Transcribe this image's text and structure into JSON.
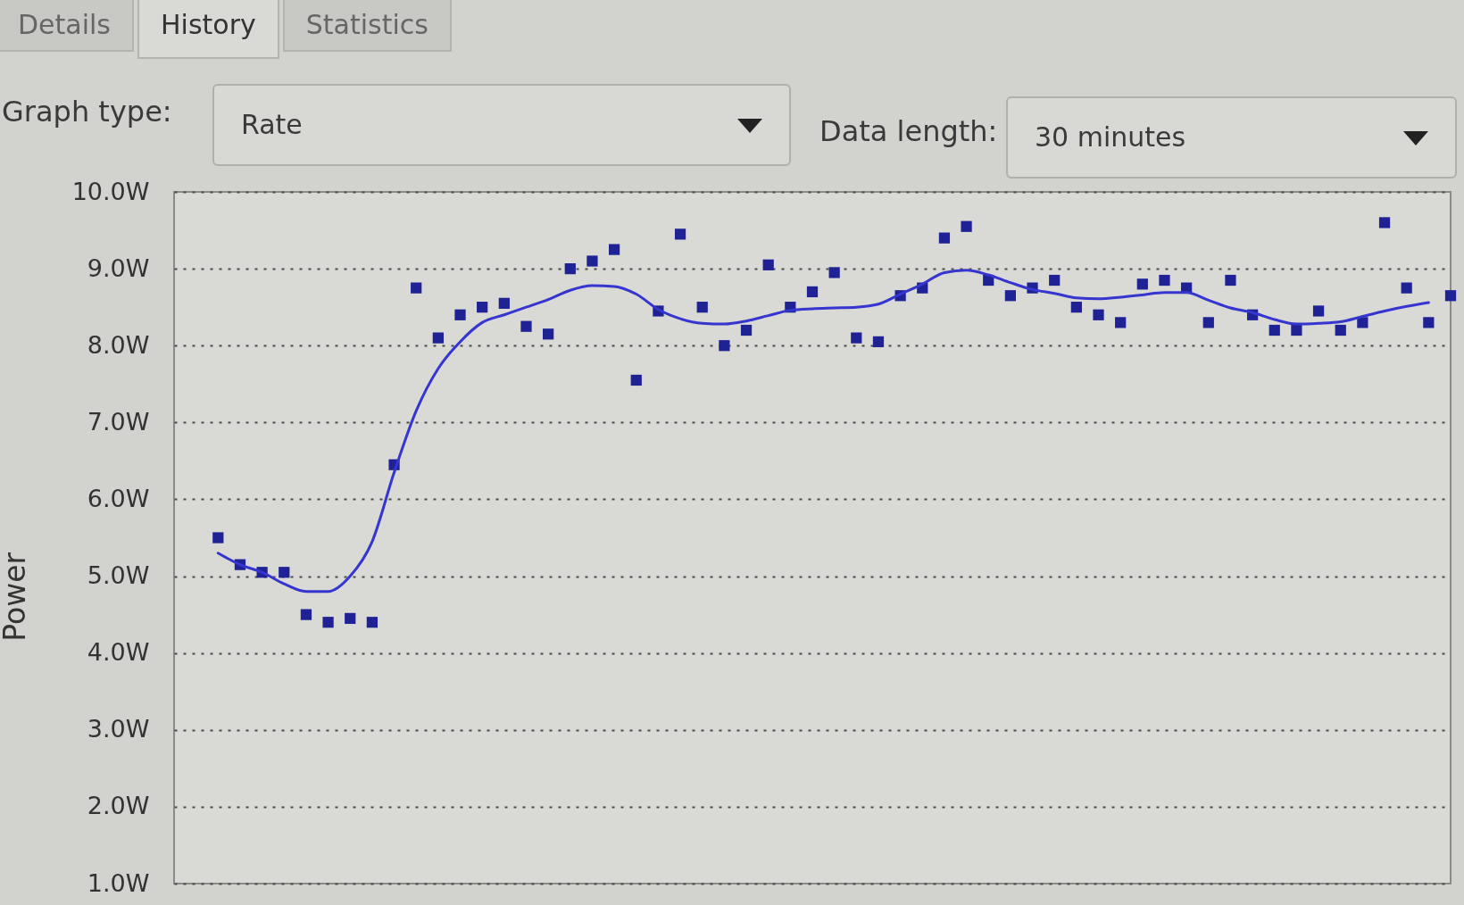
{
  "chart_data": {
    "type": "scatter",
    "ylabel": "Power",
    "annotations": [
      "Details",
      "History",
      "Statistics",
      "Graph type:",
      "Rate",
      "Data length:",
      "30 minutes"
    ],
    "categories": [
      null,
      null,
      null,
      null,
      null,
      null,
      null,
      null,
      null,
      null,
      null,
      null,
      null,
      null,
      null,
      null,
      null,
      null,
      null,
      null,
      null,
      null,
      null,
      null,
      null,
      null,
      null,
      null,
      null,
      null,
      null,
      null,
      null,
      null,
      null,
      null,
      null,
      null,
      null,
      null,
      null,
      null,
      null,
      null,
      null,
      null,
      null,
      null,
      null,
      null,
      null,
      null,
      null,
      null,
      null,
      null,
      null
    ],
    "series": [
      {
        "color": "#1f2294",
        "values": [
          5.5,
          5.15,
          5.05,
          5.05,
          4.5,
          4.4,
          4.45,
          4.4,
          6.45,
          8.75,
          8.1,
          8.4,
          8.5,
          8.55,
          8.25,
          8.15,
          9.0,
          9.1,
          9.25,
          7.55,
          8.45,
          9.45,
          8.5,
          8.0,
          8.2,
          9.05,
          8.5,
          8.7,
          8.95,
          8.1,
          8.05,
          8.65,
          8.75,
          9.4,
          9.55,
          8.85,
          8.65,
          8.75,
          8.85,
          8.5,
          8.4,
          8.3,
          8.8,
          8.85,
          8.75,
          8.3,
          8.85,
          8.4,
          8.2,
          8.2,
          8.45,
          8.2,
          8.3,
          9.6,
          8.75,
          8.3,
          8.65
        ]
      },
      {
        "type": "line",
        "color": "#3535d0",
        "marker": "none",
        "values": [
          5.3,
          5.15,
          5.05,
          4.9,
          4.8,
          4.8,
          5.0,
          5.45,
          6.35,
          7.15,
          7.7,
          8.05,
          8.3,
          8.4,
          8.5,
          8.6,
          8.72,
          8.78,
          8.77,
          8.67,
          8.47,
          8.35,
          8.29,
          8.28,
          8.32,
          8.39,
          8.46,
          8.48,
          8.49,
          8.5,
          8.54,
          8.67,
          8.8,
          8.95,
          8.98,
          8.92,
          8.82,
          8.73,
          8.68,
          8.62,
          8.61,
          8.63,
          8.66,
          8.69,
          8.69,
          8.59,
          8.49,
          8.43,
          8.34,
          8.28,
          8.29,
          8.31,
          8.38,
          8.45,
          8.51,
          8.56,
          null
        ]
      }
    ],
    "ylim": [
      1,
      10
    ],
    "yticks": [
      {
        "value": 1,
        "label": "1.0W"
      },
      {
        "value": 2,
        "label": "2.0W"
      },
      {
        "value": 3,
        "label": "3.0W"
      },
      {
        "value": 4,
        "label": "4.0W"
      },
      {
        "value": 5,
        "label": "5.0W"
      },
      {
        "value": 6,
        "label": "6.0W"
      },
      {
        "value": 7,
        "label": "7.0W"
      },
      {
        "value": 8,
        "label": "8.0W"
      },
      {
        "value": 9,
        "label": "9.0W"
      },
      {
        "value": 10,
        "label": "10.0W"
      }
    ],
    "grid": "y",
    "marker": "square"
  }
}
